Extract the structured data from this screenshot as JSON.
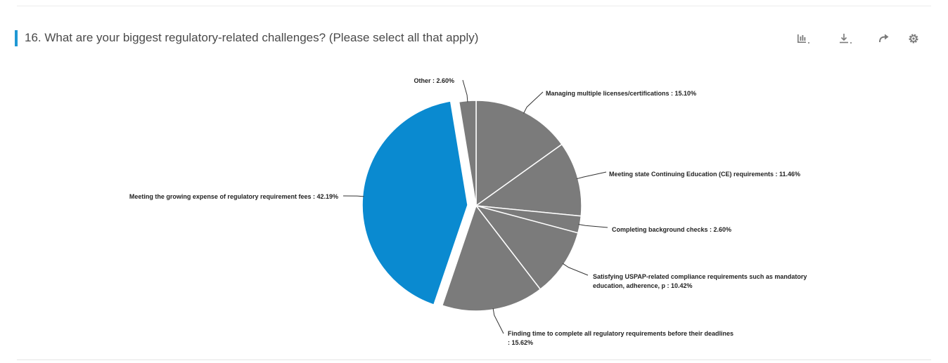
{
  "header": {
    "title": "16. What are your biggest regulatory-related challenges? (Please select all that apply)"
  },
  "toolbar": {
    "buttons": [
      {
        "name": "chart-type-icon"
      },
      {
        "name": "download-icon"
      },
      {
        "name": "share-icon"
      },
      {
        "name": "settings-icon"
      }
    ]
  },
  "colors": {
    "accent": "#1f98d4",
    "highlight_slice": "#0a8ad0",
    "slice": "#7b7b7b",
    "slice_border": "#ffffff"
  },
  "chart_data": {
    "type": "pie",
    "title": "",
    "slices": [
      {
        "label": "Managing multiple licenses/certifications : 15.10%",
        "value": 15.1
      },
      {
        "label": "Meeting state Continuing Education (CE) requirements  : 11.46%",
        "value": 11.46
      },
      {
        "label": "Completing background checks : 2.60%",
        "value": 2.6
      },
      {
        "label": [
          "Satisfying USPAP-related compliance requirements such as mandatory",
          "education, adherence, p : 10.42%"
        ],
        "value": 10.42
      },
      {
        "label": [
          "Finding time to complete all regulatory requirements before their deadlines",
          ": 15.62%"
        ],
        "value": 15.62
      },
      {
        "label": "Meeting the growing expense of regulatory requirement fees : 42.19%",
        "value": 42.19,
        "highlighted": true
      },
      {
        "label": "Other : 2.60%",
        "value": 2.6
      }
    ]
  }
}
